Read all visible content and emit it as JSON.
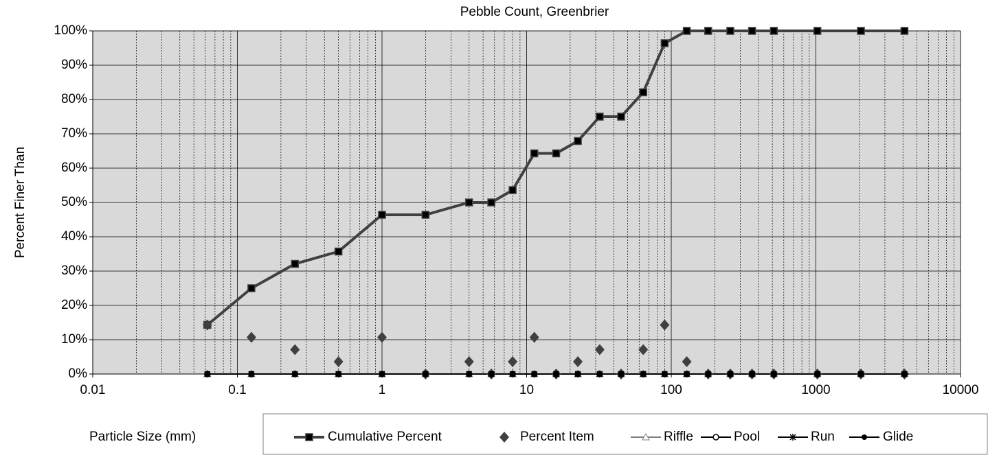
{
  "chart_data": {
    "type": "line",
    "title": "Pebble Count,  Greenbrier",
    "xlabel": "Particle Size (mm)",
    "ylabel": "Percent Finer Than",
    "x": [
      0.062,
      0.125,
      0.25,
      0.5,
      1,
      2,
      4,
      5.7,
      8,
      11.3,
      16,
      22.6,
      32,
      45,
      64,
      90,
      128,
      180,
      256,
      362,
      512,
      1024,
      2048,
      4096
    ],
    "xscale": "log",
    "xlim": [
      0.01,
      10000
    ],
    "xticks": [
      0.01,
      0.1,
      1,
      10,
      100,
      1000,
      10000
    ],
    "ylim": [
      0,
      100
    ],
    "yticks": [
      {
        "value": 0,
        "label": "0%"
      },
      {
        "value": 10,
        "label": "10%"
      },
      {
        "value": 20,
        "label": "20%"
      },
      {
        "value": 30,
        "label": "30%"
      },
      {
        "value": 40,
        "label": "40%"
      },
      {
        "value": 50,
        "label": "50%"
      },
      {
        "value": 60,
        "label": "60%"
      },
      {
        "value": 70,
        "label": "70%"
      },
      {
        "value": 80,
        "label": "80%"
      },
      {
        "value": 90,
        "label": "90%"
      },
      {
        "value": 100,
        "label": "100%"
      }
    ],
    "grid": true,
    "legend": "bottom",
    "series": [
      {
        "name": "Cumulative Percent",
        "color": "#404040",
        "marker": "square",
        "line": true,
        "values": [
          14.3,
          25,
          32.1,
          35.7,
          46.4,
          46.4,
          50,
          50,
          53.6,
          64.3,
          64.3,
          67.9,
          75,
          75,
          82.1,
          96.4,
          100,
          100,
          100,
          100,
          100,
          100,
          100,
          100
        ]
      },
      {
        "name": "Percent Item",
        "color": "#404040",
        "marker": "diamond",
        "line": false,
        "values": [
          14.3,
          10.7,
          7.1,
          3.6,
          10.7,
          0,
          3.6,
          0,
          3.6,
          10.7,
          0,
          3.6,
          7.1,
          0,
          7.1,
          14.3,
          3.6,
          0,
          0,
          0,
          0,
          0,
          0,
          0
        ]
      },
      {
        "name": "Riffle",
        "color": "#808080",
        "marker": "triangle",
        "line": true,
        "values": [
          0,
          0,
          0,
          0,
          0,
          0,
          0,
          0,
          0,
          0,
          0,
          0,
          0,
          0,
          0,
          0,
          0,
          0,
          0,
          0,
          0,
          0,
          0,
          0
        ]
      },
      {
        "name": "Pool",
        "color": "#000000",
        "marker": "opencircle",
        "line": true,
        "values": [
          0,
          0,
          0,
          0,
          0,
          0,
          0,
          0,
          0,
          0,
          0,
          0,
          0,
          0,
          0,
          0,
          0,
          0,
          0,
          0,
          0,
          0,
          0,
          0
        ]
      },
      {
        "name": "Run",
        "color": "#000000",
        "marker": "star",
        "line": true,
        "values": [
          0,
          0,
          0,
          0,
          0,
          0,
          0,
          0,
          0,
          0,
          0,
          0,
          0,
          0,
          0,
          0,
          0,
          0,
          0,
          0,
          0,
          0,
          0,
          0
        ]
      },
      {
        "name": "Glide",
        "color": "#000000",
        "marker": "circle",
        "line": true,
        "values": [
          0,
          0,
          0,
          0,
          0,
          0,
          0,
          0,
          0,
          0,
          0,
          0,
          0,
          0,
          0,
          0,
          0,
          0,
          0,
          0,
          0,
          0,
          0,
          0
        ]
      }
    ]
  }
}
